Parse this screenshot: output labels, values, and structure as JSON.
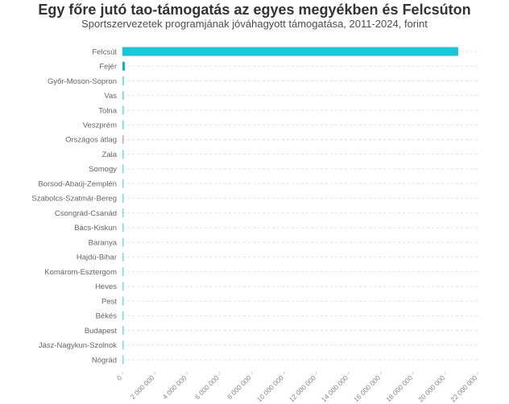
{
  "title": "Egy főre jutó tao-támogatás az egyes megyékben és Felcsúton",
  "subtitle": "Sportszervezetek programjának jóváhagyott támogatása, 2011-2024, forint",
  "chart_data": {
    "type": "bar",
    "orientation": "horizontal",
    "categories": [
      "Felcsút",
      "Fejér",
      "Győr-Moson-Sopron",
      "Vas",
      "Tolna",
      "Veszprém",
      "Országos átlag",
      "Zala",
      "Somogy",
      "Borsod-Abaúj-Zemplén",
      "Szabolcs-Szatmár-Bereg",
      "Csongrád-Csanád",
      "Bács-Kiskun",
      "Baranya",
      "Hajdú-Bihar",
      "Komárom-Esztergom",
      "Heves",
      "Pest",
      "Békés",
      "Budapest",
      "Jász-Nagykun-Szolnok",
      "Nógrád"
    ],
    "values": [
      20800000,
      150000,
      95000,
      90000,
      88000,
      85000,
      80000,
      78000,
      75000,
      72000,
      70000,
      68000,
      66000,
      64000,
      62000,
      60000,
      58000,
      56000,
      54000,
      52000,
      50000,
      45000
    ],
    "colors": [
      "#1ec5d8",
      "#1ab0c4",
      "#7fd9e3",
      "#7fd9e3",
      "#7fd9e3",
      "#7fd9e3",
      "#e8a0b0",
      "#7fd9e3",
      "#7fd9e3",
      "#7fd9e3",
      "#7fd9e3",
      "#7fd9e3",
      "#7fd9e3",
      "#7fd9e3",
      "#7fd9e3",
      "#7fd9e3",
      "#7fd9e3",
      "#7fd9e3",
      "#7fd9e3",
      "#7fd9e3",
      "#7fd9e3",
      "#7fd9e3"
    ],
    "xlim": [
      0,
      22000000
    ],
    "xticks": [
      0,
      2000000,
      4000000,
      6000000,
      8000000,
      10000000,
      12000000,
      14000000,
      16000000,
      18000000,
      20000000,
      22000000
    ],
    "xtick_labels": [
      "0",
      "2 000 000",
      "4 000 000",
      "6 000 000",
      "8 000 000",
      "10 000 000",
      "12 000 000",
      "14 000 000",
      "16 000 000",
      "18 000 000",
      "20 000 000",
      "22 000 000"
    ],
    "grid": "horizontal dashed",
    "xlabel": "",
    "ylabel": ""
  }
}
